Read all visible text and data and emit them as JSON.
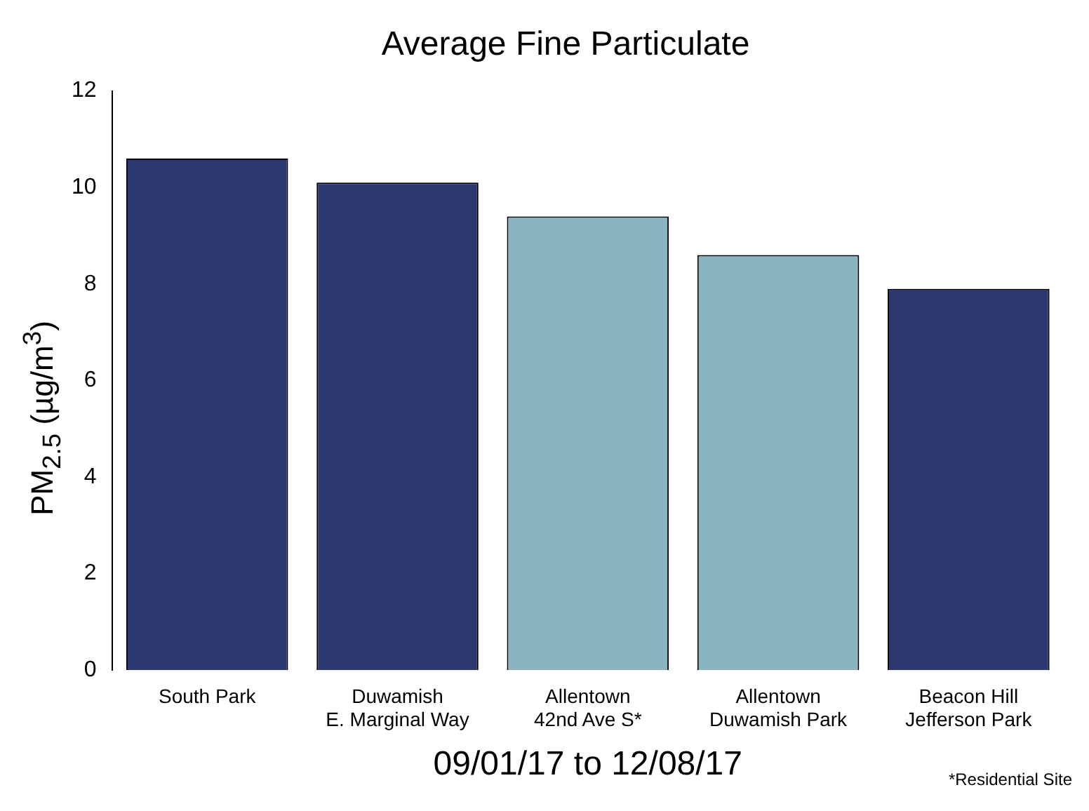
{
  "chart_data": {
    "type": "bar",
    "title": "Average Fine Particulate",
    "xlabel": "09/01/17 to 12/08/17",
    "ylabel": "PM$_{2.5}$ (µg/m$^{3}$)",
    "categories": [
      "South Park",
      "Duwamish\nE. Marginal Way",
      "Allentown\n42nd Ave S*",
      "Allentown\nDuwamish Park",
      "Beacon Hill\nJefferson Park"
    ],
    "values": [
      10.6,
      10.1,
      9.4,
      8.6,
      7.9
    ],
    "colors": [
      "#2c3872",
      "#2c3872",
      "#8ab4c0",
      "#8ab4c0",
      "#2c3872"
    ],
    "ylim": [
      0,
      12
    ],
    "yticks": [
      0,
      2,
      4,
      6,
      8,
      10,
      12
    ],
    "grid": false,
    "legend": false,
    "annotations": [
      "*Residential Site"
    ]
  }
}
